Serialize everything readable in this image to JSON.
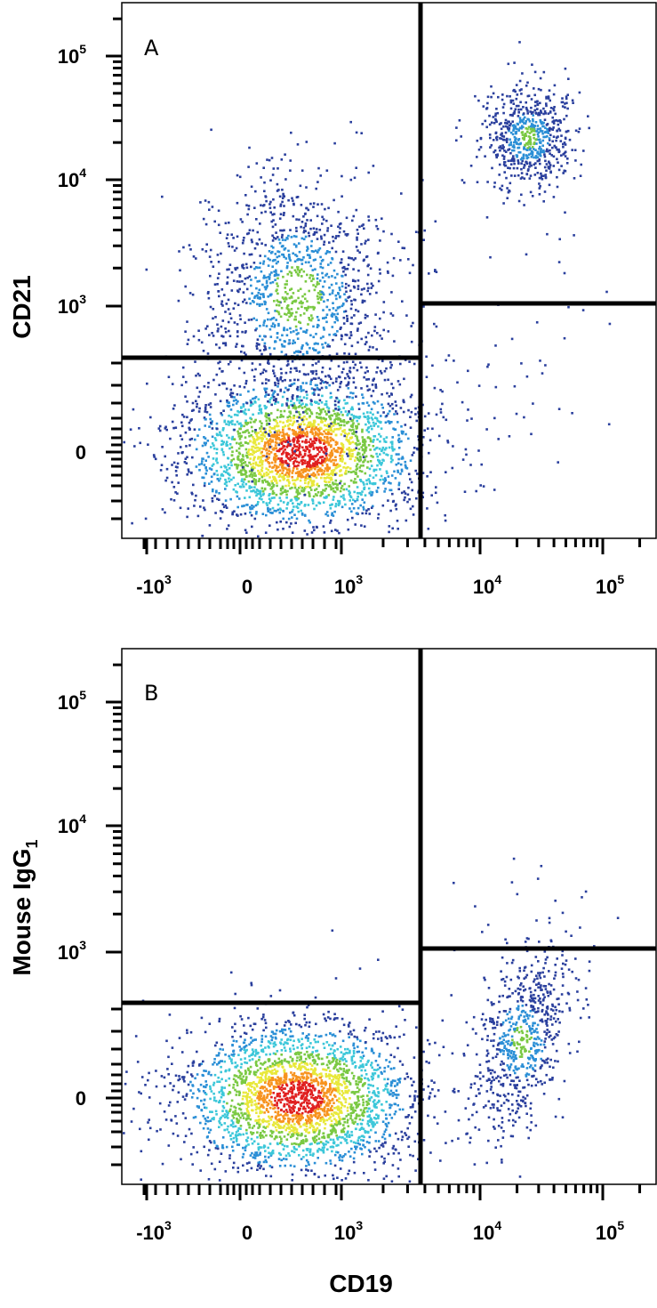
{
  "chart_data": [
    {
      "type": "scatter",
      "subtype": "flow-cytometry-density-plot",
      "panel": "A",
      "xlabel": "CD19",
      "ylabel": "CD21",
      "x_ticks": [
        "-10³",
        "0",
        "10³",
        "10⁴",
        "10⁵"
      ],
      "y_ticks": [
        "0",
        "10³",
        "10⁴",
        "10⁵"
      ],
      "x_scale": "biexponential",
      "y_scale": "biexponential",
      "gates": {
        "vertical_x": 4000,
        "left_horizontal_y": 400,
        "right_horizontal_y": 1000
      },
      "populations": [
        {
          "quadrant": "lower-left",
          "center": [
            400,
            0
          ],
          "density": "high"
        },
        {
          "quadrant": "upper-left",
          "center": [
            350,
            1200
          ],
          "density": "medium"
        },
        {
          "quadrant": "upper-right",
          "center": [
            25000,
            22000
          ],
          "density": "medium"
        },
        {
          "quadrant": "lower-right",
          "center": [
            20000,
            300
          ],
          "density": "sparse"
        }
      ]
    },
    {
      "type": "scatter",
      "subtype": "flow-cytometry-density-plot",
      "panel": "B",
      "xlabel": "CD19",
      "ylabel": "Mouse IgG1",
      "x_ticks": [
        "-10³",
        "0",
        "10³",
        "10⁴",
        "10⁵"
      ],
      "y_ticks": [
        "0",
        "10³",
        "10⁴",
        "10⁵"
      ],
      "x_scale": "biexponential",
      "y_scale": "biexponential",
      "gates": {
        "vertical_x": 4000,
        "left_horizontal_y": 400,
        "right_horizontal_y": 1000
      },
      "populations": [
        {
          "quadrant": "lower-left",
          "center": [
            350,
            0
          ],
          "density": "high"
        },
        {
          "quadrant": "lower-right",
          "center": [
            22000,
            200
          ],
          "density": "medium"
        },
        {
          "quadrant": "upper-right",
          "center": [
            30000,
            1500
          ],
          "density": "sparse"
        }
      ]
    }
  ],
  "figure": {
    "panel_a_letter": "A",
    "panel_b_letter": "B",
    "x_title": "CD19",
    "y_title_a": "CD21",
    "y_title_b_main": "Mouse IgG",
    "y_title_b_sub": "1",
    "density_colors": [
      "#2a3f9d",
      "#2b8fd6",
      "#3cc7d9",
      "#7ac943",
      "#e8e83a",
      "#f7931e",
      "#e02020"
    ]
  }
}
